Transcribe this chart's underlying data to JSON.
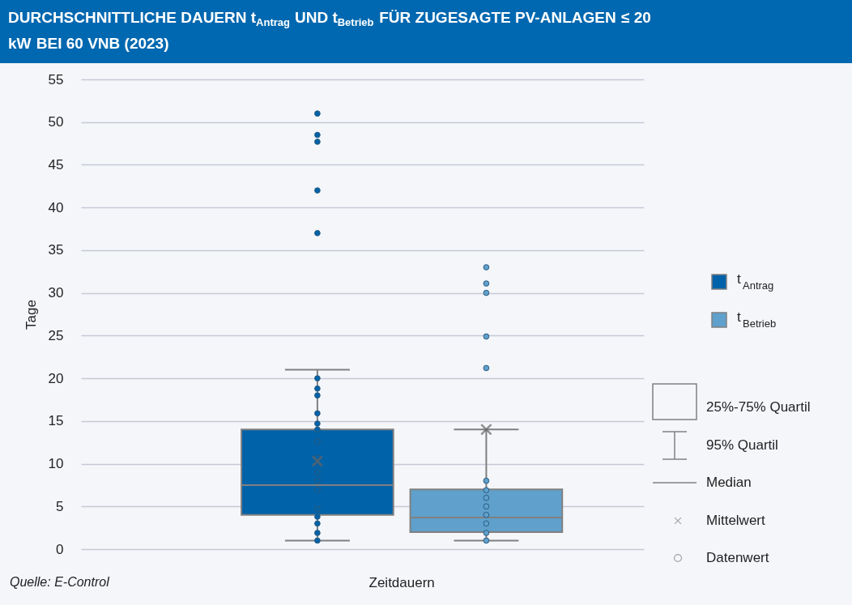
{
  "chart_data": {
    "type": "box",
    "title": "DURCHSCHNITTLICHE DAUERN t$_{Antrag}$ UND t$_{Betrieb}$ FÜR ZUGESAGTE PV-ANLAGEN ≤ 20 kW BEI 60 VNB (2023)",
    "xlabel": "Zeitdauern",
    "ylabel": "Tage",
    "categories": [
      null
    ],
    "ylim": [
      0,
      55
    ],
    "yticks": [
      0,
      5,
      10,
      15,
      20,
      25,
      30,
      35,
      40,
      45,
      50,
      55
    ],
    "grid": "y",
    "legend": "right",
    "series": [
      {
        "name": "t$_{Antrag}$",
        "color": "#0062a8",
        "boxes": [
          {
            "low": 1,
            "q1": 4,
            "median": 7.5,
            "q3": 14,
            "high": 21,
            "mean": 10.3,
            "outliers": [
              51,
              48.5,
              47.7,
              42,
              37,
              20,
              18.8,
              18,
              15.9,
              14.7,
              14,
              12.6,
              10.7,
              10,
              9,
              8,
              7,
              4.7,
              3.8,
              3,
              1.9,
              1
            ]
          }
        ]
      },
      {
        "name": "t$_{Betrieb}$",
        "color": "#5fa0cc",
        "boxes": [
          {
            "low": 1,
            "q1": 2,
            "median": 3.7,
            "q3": 7,
            "high": 14,
            "mean": 14,
            "outliers": [
              33,
              31.1,
              30,
              24.9,
              21.2,
              8,
              6.9,
              6,
              5,
              4,
              3,
              1.9,
              1
            ]
          }
        ]
      }
    ],
    "annotations": [
      "25%-75% Quartil",
      "95% Quartil",
      "Median",
      "Mittelwert",
      "Datenwert",
      "Quelle: E-Control"
    ]
  }
}
